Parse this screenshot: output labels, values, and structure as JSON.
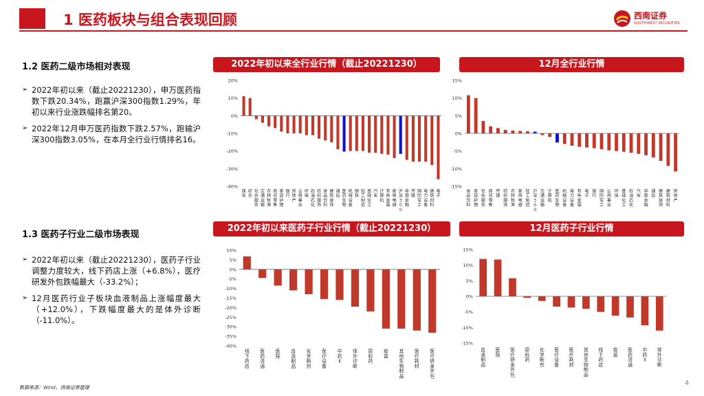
{
  "header": {
    "title": "1 医药板块与组合表现回顾"
  },
  "logo": {
    "name": "西南证券",
    "sub": "SOUTHWEST SECURITIES"
  },
  "section1": {
    "title": "1.2 医药二级市场相对表现",
    "bullets": [
      "2022年初以来（截止20221230），申万医药指数下跌20.34%，跑赢沪深300指数1.29%，年初以来行业涨跌幅排名第20。",
      "2022年12月申万医药指数下跌2.57%，跑输沪深300指数3.05%，在本月全行业行情排名16。"
    ]
  },
  "section2": {
    "title": "1.3 医药子行业二级市场表现",
    "bullets": [
      "2022年初以来（截止20221230），医药子行业调整力度较大，线下药店上涨（+6.8%），医疗研发外包跌幅最大（-33.2%）；",
      "12月医药行业子板块血液制品上涨幅度最大（+12.0%），下跌幅度最大的是体外诊断（-11.0%）。"
    ]
  },
  "footer": {
    "source": "数据来源：Wind，西南证券整理",
    "page": "4"
  },
  "colors": {
    "accent": "#c8161e",
    "bar": "#c0392b",
    "highlight": "#1010d0"
  },
  "chart_data": [
    {
      "type": "bar",
      "title": "2022年初以来全行业行情（截止20221230）",
      "ylim": [
        -40,
        20
      ],
      "yticks": [
        20,
        10,
        0,
        -10,
        -20,
        -30,
        -40
      ],
      "ytick_labels": [
        "20%",
        "10%",
        "0%",
        "-10%",
        "-20%",
        "-30%",
        "-40%"
      ],
      "categories": [
        "煤炭",
        "综合",
        "社会服务",
        "交通运输",
        "农林牧渔",
        "商贸零售",
        "美容护理",
        "银行",
        "房地产",
        "公用事业",
        "环保",
        "石油石化",
        "纺织服饰",
        "食品饮料",
        "建筑装饰",
        "通信",
        "医药生物",
        "机械设备",
        "钢铁",
        "轻工制造",
        "基础化工",
        "汽车",
        "计算机",
        "有色金属",
        "家用电器",
        "沪深300",
        "非银金融",
        "传媒",
        "国防军工",
        "电力设备",
        "建筑材料",
        "电子"
      ],
      "values": [
        11.0,
        10.0,
        -2.0,
        -4.0,
        -6.0,
        -7.0,
        -9.0,
        -10.0,
        -10.0,
        -10.0,
        -11.0,
        -11.0,
        -13.0,
        -14.0,
        -15.0,
        -19.0,
        -20.34,
        -20.0,
        -20.0,
        -20.0,
        -21.0,
        -21.0,
        -21.6,
        -22.0,
        -24.0,
        -21.63,
        -25.0,
        -26.0,
        -26.0,
        -26.0,
        -28.0,
        -36.0
      ],
      "highlight": [
        "医药生物",
        "沪深300"
      ]
    },
    {
      "type": "bar",
      "title": "12月全行业行情",
      "ylim": [
        -15,
        15
      ],
      "yticks": [
        15,
        10,
        5,
        0,
        -5,
        -10,
        -15
      ],
      "ytick_labels": [
        "15%",
        "10%",
        "5%",
        "0%",
        "-5%",
        "-10%",
        "-15%"
      ],
      "categories": [
        "食品饮料",
        "美容护理",
        "社会服务",
        "商贸零售",
        "传媒",
        "纺织服饰",
        "农林牧渔",
        "家用电器",
        "轻工制造",
        "沪深300",
        "交通运输",
        "计算机",
        "医药生物",
        "机械设备",
        "电力设备",
        "有色金属",
        "电子",
        "银行",
        "国防军工",
        "公用事业",
        "环保",
        "基础化工",
        "石油石化",
        "汽车",
        "非银金融",
        "通信",
        "建筑装饰",
        "建筑材料",
        "房地产"
      ],
      "values": [
        10.8,
        10.0,
        3.5,
        2.0,
        1.5,
        1.0,
        0.8,
        0.7,
        0.6,
        0.48,
        -0.5,
        -1.0,
        -2.57,
        -3.0,
        -3.5,
        -3.8,
        -4.0,
        -4.2,
        -4.5,
        -4.8,
        -5.0,
        -5.2,
        -5.5,
        -5.8,
        -6.2,
        -6.8,
        -7.8,
        -9.2,
        -10.8
      ],
      "highlight": [
        "医药生物",
        "沪深300"
      ]
    },
    {
      "type": "bar",
      "title": "2022年初以来医药子行业行情（截止20221230）",
      "ylim": [
        -40,
        10
      ],
      "yticks": [
        10,
        5,
        0,
        -5,
        -10,
        -15,
        -20,
        -25,
        -30,
        -35,
        -40
      ],
      "ytick_labels": [
        "10%",
        "5%",
        "0%",
        "-5%",
        "-10%",
        "-15%",
        "-20%",
        "-25%",
        "-30%",
        "-35%",
        "-40%"
      ],
      "categories": [
        "线下药店",
        "医药流通",
        "医院",
        "血液制品",
        "化学制剂",
        "医疗设备",
        "中药Ⅱ",
        "体外诊断",
        "原料药",
        "疫苗",
        "其他生物制品",
        "医疗耗材",
        "医疗研发外包"
      ],
      "values": [
        6.8,
        -4.5,
        -8.5,
        -11.0,
        -13.0,
        -15.5,
        -16.0,
        -19.5,
        -22.0,
        -31.0,
        -31.0,
        -32.0,
        -33.2
      ]
    },
    {
      "type": "bar",
      "title": "12月医药子行业行情",
      "ylim": [
        -15,
        15
      ],
      "yticks": [
        15,
        10,
        5,
        0,
        -5,
        -10,
        -15
      ],
      "ytick_labels": [
        "15%",
        "10%",
        "5%",
        "0%",
        "-5%",
        "-10%",
        "-15%"
      ],
      "categories": [
        "血液制品",
        "医院",
        "医疗研发外包",
        "原料药",
        "化学制剂",
        "医疗设备",
        "医疗耗材",
        "其他生物制品",
        "线下药店",
        "疫苗",
        "医药流通",
        "中药Ⅱ",
        "体外诊断"
      ],
      "values": [
        12.0,
        11.8,
        5.8,
        -0.5,
        -1.5,
        -3.3,
        -3.6,
        -4.0,
        -5.0,
        -6.2,
        -6.8,
        -9.3,
        -11.0
      ]
    }
  ]
}
